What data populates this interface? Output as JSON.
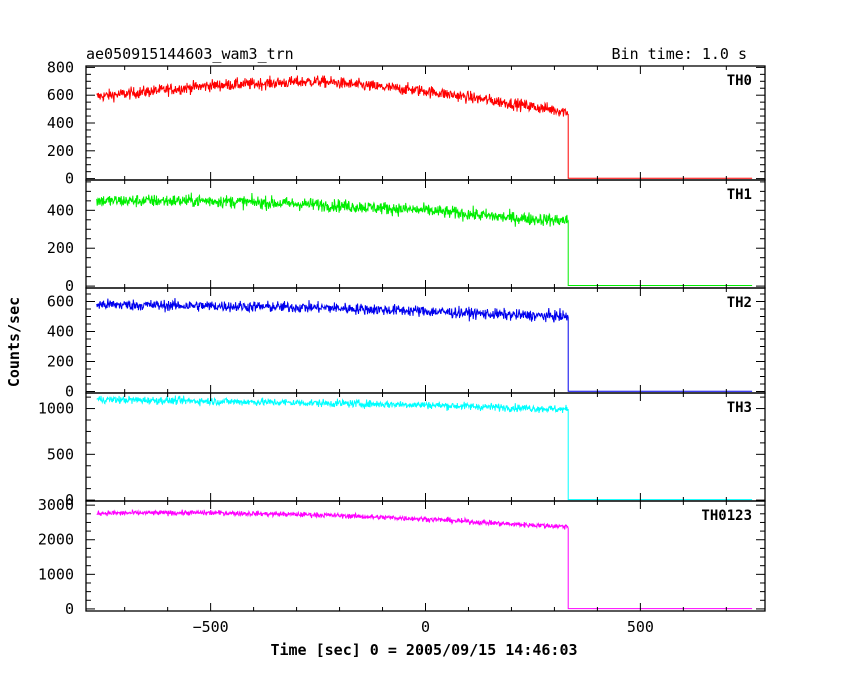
{
  "chart_data": {
    "type": "line",
    "title": "ae050915144603_wam3_trn",
    "bin_time": "Bin time: 1.0 s",
    "xlabel": "Time [sec] 0 = 2005/09/15 14:46:03",
    "ylabel": "Counts/sec",
    "xlim": [
      -790,
      790
    ],
    "x_ticks": [
      -500,
      0,
      500
    ],
    "x_tick_labels": [
      "−500",
      "0",
      "500"
    ],
    "cutoff_x": 332,
    "data_start_x": -765,
    "data_end_x": 760,
    "grid": false,
    "panels": [
      {
        "name": "TH0",
        "color": "#ff0000",
        "ylim": [
          -10,
          810
        ],
        "y_ticks": [
          0,
          200,
          400,
          600,
          800
        ],
        "y_tick_labels": [
          "0",
          "200",
          "400",
          "600",
          "800"
        ],
        "trend_x": [
          -765,
          -500,
          -250,
          0,
          200,
          332
        ],
        "trend_y": [
          590,
          670,
          700,
          630,
          540,
          480
        ],
        "noise": 40,
        "after_value": 2
      },
      {
        "name": "TH1",
        "color": "#00ee00",
        "ylim": [
          -10,
          560
        ],
        "y_ticks": [
          0,
          200,
          400
        ],
        "y_tick_labels": [
          "0",
          "200",
          "400"
        ],
        "trend_x": [
          -765,
          -500,
          -250,
          0,
          200,
          332
        ],
        "trend_y": [
          450,
          450,
          430,
          400,
          360,
          345
        ],
        "noise": 32,
        "after_value": 3
      },
      {
        "name": "TH2",
        "color": "#0000ee",
        "ylim": [
          -10,
          690
        ],
        "y_ticks": [
          0,
          200,
          400,
          600
        ],
        "y_tick_labels": [
          "0",
          "200",
          "400",
          "600"
        ],
        "trend_x": [
          -765,
          -500,
          -250,
          0,
          200,
          332
        ],
        "trend_y": [
          580,
          570,
          560,
          535,
          510,
          500
        ],
        "noise": 35,
        "after_value": 2
      },
      {
        "name": "TH3",
        "color": "#00ffff",
        "ylim": [
          -10,
          1170
        ],
        "y_ticks": [
          0,
          500,
          1000
        ],
        "y_tick_labels": [
          "0",
          "500",
          "1000"
        ],
        "trend_x": [
          -765,
          -500,
          -250,
          0,
          200,
          332
        ],
        "trend_y": [
          1100,
          1080,
          1060,
          1040,
          1010,
          990
        ],
        "noise": 40,
        "after_value": 5
      },
      {
        "name": "TH0123",
        "color": "#ff00ff",
        "ylim": [
          -60,
          3120
        ],
        "y_ticks": [
          0,
          1000,
          2000,
          3000
        ],
        "y_tick_labels": [
          "0",
          "1000",
          "2000",
          "3000"
        ],
        "trend_x": [
          -765,
          -500,
          -250,
          0,
          200,
          332
        ],
        "trend_y": [
          2770,
          2780,
          2720,
          2600,
          2450,
          2380
        ],
        "noise": 70,
        "after_value": 10
      }
    ]
  }
}
